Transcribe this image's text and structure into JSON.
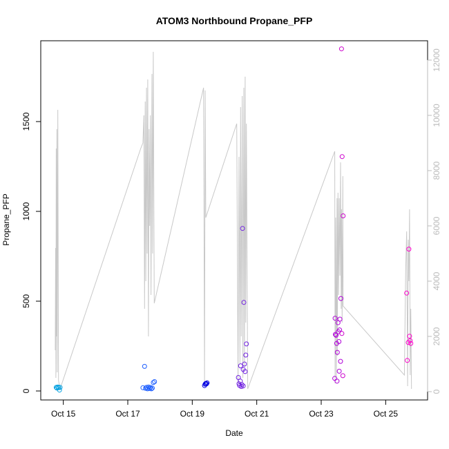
{
  "chart_data": {
    "type": "scatter",
    "title": "ATOM3 Northbound Propane_PFP",
    "xlabel": "Date",
    "ylabel": "Propane_PFP",
    "x_ticks": [
      "Oct 15",
      "Oct 17",
      "Oct 19",
      "Oct 21",
      "Oct 23",
      "Oct 25"
    ],
    "x_tick_values": [
      15,
      17,
      19,
      21,
      23,
      25
    ],
    "xlim": [
      14.3,
      26.3
    ],
    "y_ticks": [
      0,
      500,
      1000,
      1500
    ],
    "ylim": [
      -50,
      1950
    ],
    "secondary_y_ticks": [
      0,
      2000,
      4000,
      6000,
      8000,
      10000,
      12000
    ],
    "secondary_ylim": [
      -300,
      12700
    ],
    "grid": false,
    "legend": "none",
    "colors": {
      "line": "#c8c8c8",
      "secondary_axis": "#bbbbbb",
      "points_early": "#00a0e0",
      "points_mid": "#1a5cff",
      "points_mid2": "#0000e0",
      "points_late1": "#8a2be2",
      "points_late2": "#cc00cc",
      "points_last": "#ff00cc"
    },
    "points": [
      {
        "x": 14.78,
        "y": 20,
        "c": "#00a0e0"
      },
      {
        "x": 14.8,
        "y": 16,
        "c": "#00a0e0"
      },
      {
        "x": 14.83,
        "y": 22,
        "c": "#00a0e0"
      },
      {
        "x": 14.86,
        "y": 18,
        "c": "#00a0e0"
      },
      {
        "x": 14.88,
        "y": 5,
        "c": "#00a0e0"
      },
      {
        "x": 14.9,
        "y": 20,
        "c": "#00a0e0"
      },
      {
        "x": 17.47,
        "y": 18,
        "c": "#1a5cff"
      },
      {
        "x": 17.52,
        "y": 137,
        "c": "#1a5cff"
      },
      {
        "x": 17.55,
        "y": 15,
        "c": "#1a5cff"
      },
      {
        "x": 17.58,
        "y": 20,
        "c": "#1a5cff"
      },
      {
        "x": 17.61,
        "y": 12,
        "c": "#1a5cff"
      },
      {
        "x": 17.64,
        "y": 22,
        "c": "#1a5cff"
      },
      {
        "x": 17.67,
        "y": 14,
        "c": "#1a5cff"
      },
      {
        "x": 17.7,
        "y": 20,
        "c": "#1a5cff"
      },
      {
        "x": 17.73,
        "y": 12,
        "c": "#1a5cff"
      },
      {
        "x": 17.76,
        "y": 16,
        "c": "#1a5cff"
      },
      {
        "x": 17.79,
        "y": 47,
        "c": "#1a5cff"
      },
      {
        "x": 17.83,
        "y": 52,
        "c": "#1a5cff"
      },
      {
        "x": 19.38,
        "y": 30,
        "c": "#0000e0"
      },
      {
        "x": 19.4,
        "y": 38,
        "c": "#0000e0"
      },
      {
        "x": 19.42,
        "y": 42,
        "c": "#0000e0"
      },
      {
        "x": 19.44,
        "y": 40,
        "c": "#0000e0"
      },
      {
        "x": 19.46,
        "y": 45,
        "c": "#0000e0"
      },
      {
        "x": 20.43,
        "y": 75,
        "c": "#7020e0"
      },
      {
        "x": 20.45,
        "y": 40,
        "c": "#7020e0"
      },
      {
        "x": 20.47,
        "y": 30,
        "c": "#7020e0"
      },
      {
        "x": 20.49,
        "y": 55,
        "c": "#7020e0"
      },
      {
        "x": 20.5,
        "y": 140,
        "c": "#7020e0"
      },
      {
        "x": 20.52,
        "y": 25,
        "c": "#7020e0"
      },
      {
        "x": 20.54,
        "y": 35,
        "c": "#7020e0"
      },
      {
        "x": 20.56,
        "y": 905,
        "c": "#7020e0"
      },
      {
        "x": 20.58,
        "y": 120,
        "c": "#7020e0"
      },
      {
        "x": 20.6,
        "y": 493,
        "c": "#7020e0"
      },
      {
        "x": 20.62,
        "y": 150,
        "c": "#7020e0"
      },
      {
        "x": 20.64,
        "y": 108,
        "c": "#7020e0"
      },
      {
        "x": 20.66,
        "y": 200,
        "c": "#7020e0"
      },
      {
        "x": 20.68,
        "y": 262,
        "c": "#7020e0"
      },
      {
        "x": 20.58,
        "y": 28,
        "c": "#7020e0"
      },
      {
        "x": 23.42,
        "y": 70,
        "c": "#b000d8"
      },
      {
        "x": 23.43,
        "y": 405,
        "c": "#b000d8"
      },
      {
        "x": 23.44,
        "y": 315,
        "c": "#b000d8"
      },
      {
        "x": 23.46,
        "y": 310,
        "c": "#b000d8"
      },
      {
        "x": 23.48,
        "y": 265,
        "c": "#b000d8"
      },
      {
        "x": 23.49,
        "y": 55,
        "c": "#b000d8"
      },
      {
        "x": 23.5,
        "y": 215,
        "c": "#b000d8"
      },
      {
        "x": 23.52,
        "y": 380,
        "c": "#b000d8"
      },
      {
        "x": 23.53,
        "y": 330,
        "c": "#b000d8"
      },
      {
        "x": 23.55,
        "y": 275,
        "c": "#b000d8"
      },
      {
        "x": 23.56,
        "y": 110,
        "c": "#b000d8"
      },
      {
        "x": 23.57,
        "y": 340,
        "c": "#b000d8"
      },
      {
        "x": 23.58,
        "y": 400,
        "c": "#b000d8"
      },
      {
        "x": 23.6,
        "y": 165,
        "c": "#b000d8"
      },
      {
        "x": 23.61,
        "y": 515,
        "c": "#b000d8"
      },
      {
        "x": 23.63,
        "y": 1905,
        "c": "#cc00cc"
      },
      {
        "x": 23.64,
        "y": 320,
        "c": "#cc00cc"
      },
      {
        "x": 23.65,
        "y": 1305,
        "c": "#cc00cc"
      },
      {
        "x": 23.67,
        "y": 85,
        "c": "#cc00cc"
      },
      {
        "x": 23.68,
        "y": 975,
        "c": "#cc00cc"
      },
      {
        "x": 25.65,
        "y": 545,
        "c": "#ff00cc"
      },
      {
        "x": 25.67,
        "y": 170,
        "c": "#ff00cc"
      },
      {
        "x": 25.7,
        "y": 270,
        "c": "#ff00cc"
      },
      {
        "x": 25.72,
        "y": 790,
        "c": "#ff00cc"
      },
      {
        "x": 25.74,
        "y": 305,
        "c": "#ff00cc"
      },
      {
        "x": 25.76,
        "y": 280,
        "c": "#ff00cc"
      },
      {
        "x": 25.78,
        "y": 265,
        "c": "#ff00cc"
      }
    ],
    "secondary_series": [
      [
        14.75,
        1500
      ],
      [
        14.76,
        5200
      ],
      [
        14.77,
        500
      ],
      [
        14.78,
        8800
      ],
      [
        14.79,
        2000
      ],
      [
        14.8,
        9500
      ],
      [
        14.81,
        700
      ],
      [
        14.83,
        10200
      ],
      [
        14.85,
        400
      ],
      [
        14.9,
        100
      ],
      [
        17.4,
        8800
      ],
      [
        17.47,
        9000
      ],
      [
        17.5,
        10000
      ],
      [
        17.52,
        3000
      ],
      [
        17.54,
        10500
      ],
      [
        17.56,
        4000
      ],
      [
        17.58,
        11000
      ],
      [
        17.6,
        5000
      ],
      [
        17.62,
        11300
      ],
      [
        17.64,
        2000
      ],
      [
        17.66,
        9500
      ],
      [
        17.68,
        6000
      ],
      [
        17.7,
        10000
      ],
      [
        17.72,
        3500
      ],
      [
        17.75,
        11500
      ],
      [
        17.77,
        5000
      ],
      [
        17.79,
        12300
      ],
      [
        17.82,
        3200
      ],
      [
        19.35,
        11000
      ],
      [
        19.38,
        300
      ],
      [
        19.4,
        10900
      ],
      [
        19.42,
        6300
      ],
      [
        20.38,
        9700
      ],
      [
        20.42,
        300
      ],
      [
        20.45,
        8500
      ],
      [
        20.48,
        1000
      ],
      [
        20.5,
        10300
      ],
      [
        20.52,
        2000
      ],
      [
        20.55,
        10700
      ],
      [
        20.57,
        500
      ],
      [
        20.6,
        11000
      ],
      [
        20.62,
        900
      ],
      [
        20.64,
        11400
      ],
      [
        20.66,
        2500
      ],
      [
        20.68,
        9700
      ],
      [
        20.72,
        100
      ],
      [
        23.42,
        8700
      ],
      [
        23.43,
        300
      ],
      [
        23.45,
        6300
      ],
      [
        23.47,
        500
      ],
      [
        23.49,
        7000
      ],
      [
        23.5,
        1300
      ],
      [
        23.52,
        7200
      ],
      [
        23.54,
        3500
      ],
      [
        23.56,
        7000
      ],
      [
        23.58,
        4200
      ],
      [
        23.6,
        8300
      ],
      [
        23.62,
        3000
      ],
      [
        23.63,
        6600
      ],
      [
        23.65,
        2500
      ],
      [
        23.67,
        7800
      ],
      [
        23.68,
        3100
      ],
      [
        25.58,
        600
      ],
      [
        25.62,
        4400
      ],
      [
        25.65,
        5800
      ],
      [
        25.68,
        200
      ],
      [
        25.7,
        5500
      ],
      [
        25.72,
        4000
      ],
      [
        25.74,
        6600
      ],
      [
        25.76,
        600
      ],
      [
        25.78,
        3000
      ],
      [
        25.8,
        100
      ]
    ]
  }
}
